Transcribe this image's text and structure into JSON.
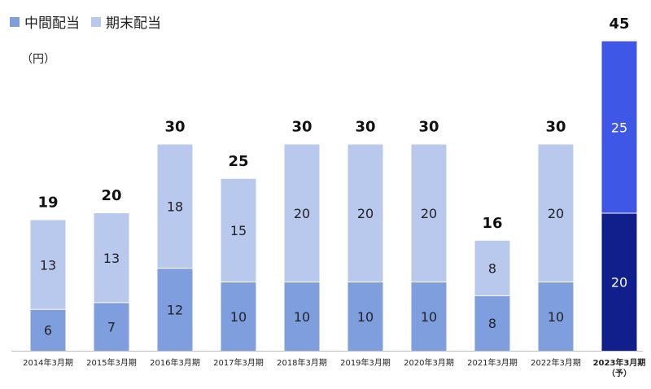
{
  "legend": {
    "interim": "中間配当",
    "year_end": "期末配当"
  },
  "unit": "（円）",
  "colors": {
    "interim": "#7f9ede",
    "year_end": "#b9c8ed",
    "forecast_interim": "#101f8c",
    "forecast_year_end": "#3f57e6"
  },
  "chart_data": {
    "type": "bar",
    "stacked": true,
    "categories": [
      "2014年3月期",
      "2015年3月期",
      "2016年3月期",
      "2017年3月期",
      "2018年3月期",
      "2019年3月期",
      "2020年3月期",
      "2021年3月期",
      "2022年3月期",
      "2023年3月期（予）"
    ],
    "series": [
      {
        "name": "中間配当",
        "values": [
          6,
          7,
          12,
          10,
          10,
          10,
          10,
          8,
          10,
          20
        ]
      },
      {
        "name": "期末配当",
        "values": [
          13,
          13,
          18,
          15,
          20,
          20,
          20,
          8,
          20,
          25
        ]
      }
    ],
    "totals": [
      19,
      20,
      30,
      25,
      30,
      30,
      30,
      16,
      30,
      45
    ],
    "forecast_index": 9,
    "ylim": [
      0,
      45
    ],
    "grid": false,
    "legend_position": "top-left"
  }
}
